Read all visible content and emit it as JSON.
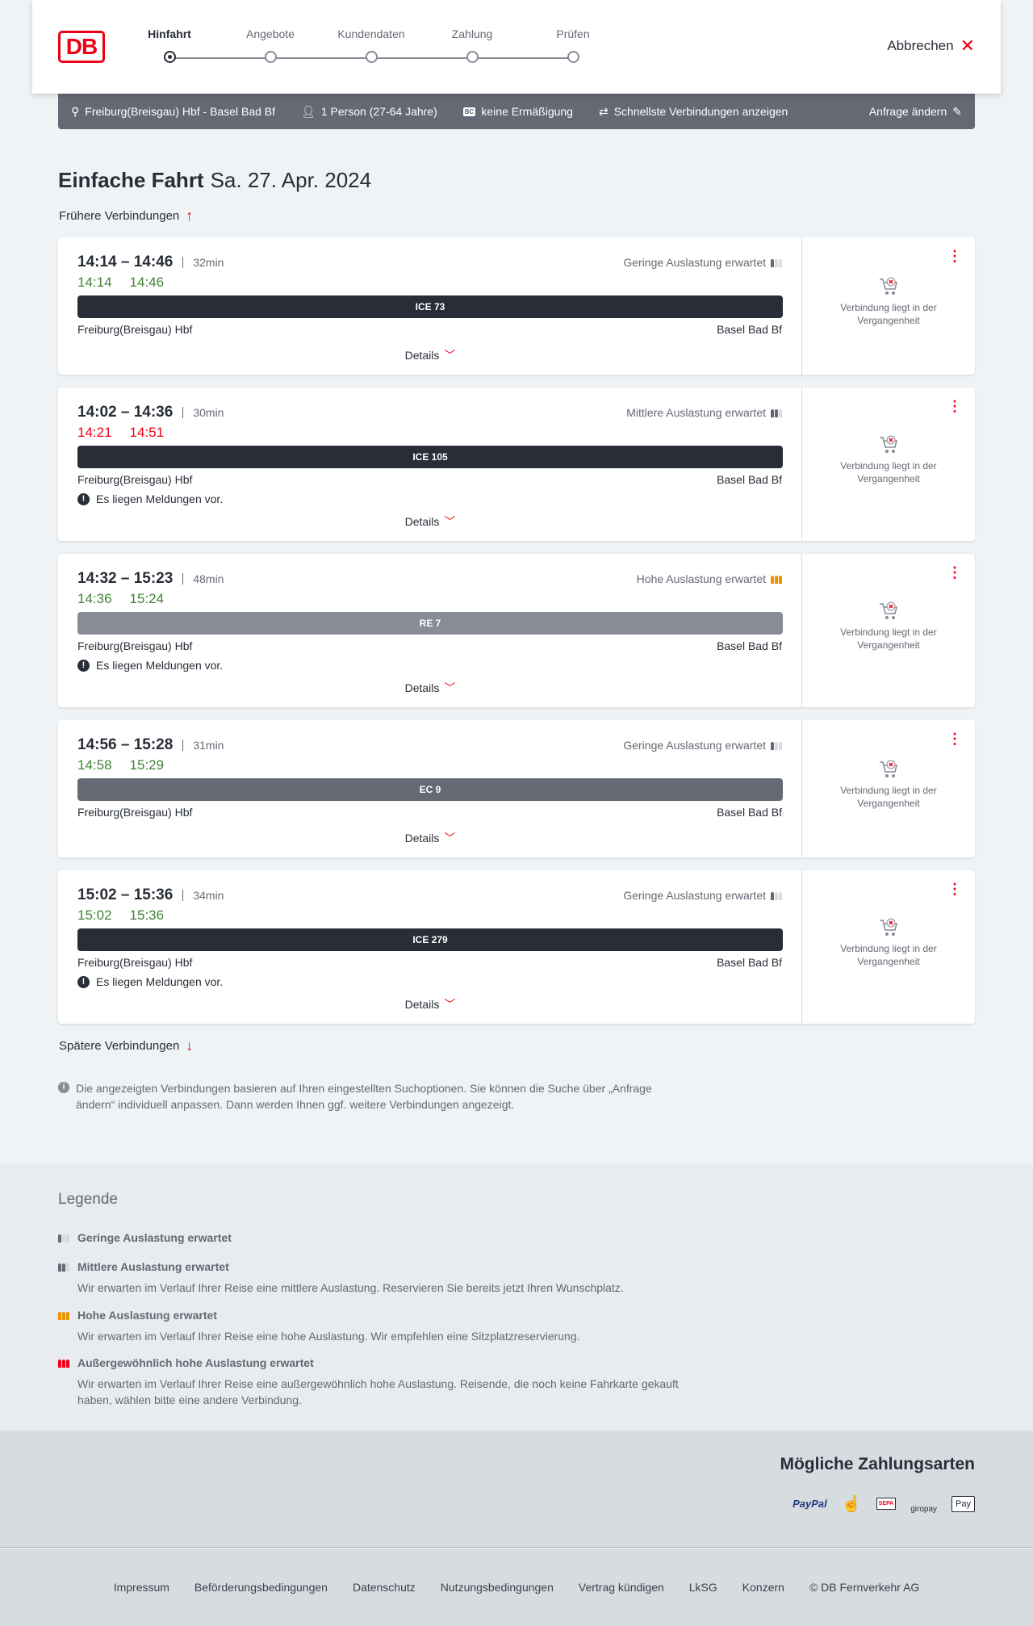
{
  "header": {
    "logo": "DB",
    "steps": [
      "Hinfahrt",
      "Angebote",
      "Kundendaten",
      "Zahlung",
      "Prüfen"
    ],
    "active_step": 0,
    "cancel": "Abbrechen"
  },
  "search": {
    "route": "Freiburg(Breisgau) Hbf - Basel Bad Bf",
    "travellers": "1 Person (27-64 Jahre)",
    "discount_badge": "BC",
    "discount": "keine Ermäßigung",
    "option": "Schnellste Verbindungen anzeigen",
    "edit": "Anfrage ändern"
  },
  "page": {
    "title": "Einfache Fahrt",
    "date": "Sa. 27. Apr. 2024",
    "earlier": "Frühere Verbindungen",
    "later": "Spätere Verbindungen",
    "info": "Die angezeigten Verbindungen basieren auf Ihren eingestellten Suchoptionen. Sie können die Suche über „Anfrage ändern“ individuell anpassen. Dann werden Ihnen ggf. weitere Verbindungen angezeigt."
  },
  "colors": {
    "on_time": "#408335",
    "delayed": "#ec0016",
    "accent": "#ec0016",
    "high_load": "#f39200"
  },
  "connections": [
    {
      "times": "14:14 – 14:46",
      "duration": "32min",
      "rt_dep": "14:14",
      "rt_arr": "14:46",
      "rt_status": "on_time",
      "load": "Geringe Auslastung erwartet",
      "load_level": 1,
      "train": "ICE 73",
      "train_color": "#282d37",
      "from": "Freiburg(Breisgau) Hbf",
      "to": "Basel Bad Bf",
      "message": "",
      "details": "Details",
      "status": "Verbindung liegt in der Vergangenheit"
    },
    {
      "times": "14:02 – 14:36",
      "duration": "30min",
      "rt_dep": "14:21",
      "rt_arr": "14:51",
      "rt_status": "delayed",
      "load": "Mittlere Auslastung erwartet",
      "load_level": 2,
      "train": "ICE 105",
      "train_color": "#282d37",
      "from": "Freiburg(Breisgau) Hbf",
      "to": "Basel Bad Bf",
      "message": "Es liegen Meldungen vor.",
      "details": "Details",
      "status": "Verbindung liegt in der Vergangenheit"
    },
    {
      "times": "14:32 – 15:23",
      "duration": "48min",
      "rt_dep": "14:36",
      "rt_arr": "15:24",
      "rt_status": "on_time",
      "load": "Hohe Auslastung erwartet",
      "load_level": 3,
      "train": "RE 7",
      "train_color": "#878c96",
      "from": "Freiburg(Breisgau) Hbf",
      "to": "Basel Bad Bf",
      "message": "Es liegen Meldungen vor.",
      "details": "Details",
      "status": "Verbindung liegt in der Vergangenheit"
    },
    {
      "times": "14:56 – 15:28",
      "duration": "31min",
      "rt_dep": "14:58",
      "rt_arr": "15:29",
      "rt_status": "on_time",
      "load": "Geringe Auslastung erwartet",
      "load_level": 1,
      "train": "EC 9",
      "train_color": "#646973",
      "from": "Freiburg(Breisgau) Hbf",
      "to": "Basel Bad Bf",
      "message": "",
      "details": "Details",
      "status": "Verbindung liegt in der Vergangenheit"
    },
    {
      "times": "15:02 – 15:36",
      "duration": "34min",
      "rt_dep": "15:02",
      "rt_arr": "15:36",
      "rt_status": "on_time",
      "load": "Geringe Auslastung erwartet",
      "load_level": 1,
      "train": "ICE 279",
      "train_color": "#282d37",
      "from": "Freiburg(Breisgau) Hbf",
      "to": "Basel Bad Bf",
      "message": "Es liegen Meldungen vor.",
      "details": "Details",
      "status": "Verbindung liegt in der Vergangenheit"
    }
  ],
  "legend": {
    "title": "Legende",
    "items": [
      {
        "title": "Geringe Auslastung erwartet",
        "desc": "",
        "level": 1
      },
      {
        "title": "Mittlere Auslastung erwartet",
        "desc": "Wir erwarten im Verlauf Ihrer Reise eine mittlere Auslastung. Reservieren Sie bereits jetzt Ihren Wunschplatz.",
        "level": 2
      },
      {
        "title": "Hohe Auslastung erwartet",
        "desc": "Wir erwarten im Verlauf Ihrer Reise eine hohe Auslastung. Wir empfehlen eine Sitzplatzreservierung.",
        "level": 3
      },
      {
        "title": "Außergewöhnlich hohe Auslastung erwartet",
        "desc": "Wir erwarten im Verlauf Ihrer Reise eine außergewöhnlich hohe Auslastung. Reisende, die noch keine Fahrkarte gekauft haben, wählen bitte eine andere Verbindung.",
        "level": 4
      }
    ]
  },
  "payment": {
    "title": "Mögliche Zahlungsarten",
    "methods": [
      "PayPal",
      "Kreditkarte",
      "SEPA",
      "giropay",
      "Pay"
    ]
  },
  "footer": {
    "links": [
      "Impressum",
      "Beförderungsbedingungen",
      "Datenschutz",
      "Nutzungsbedingungen",
      "Vertrag kündigen",
      "LkSG",
      "Konzern",
      "© DB Fernverkehr AG"
    ]
  }
}
